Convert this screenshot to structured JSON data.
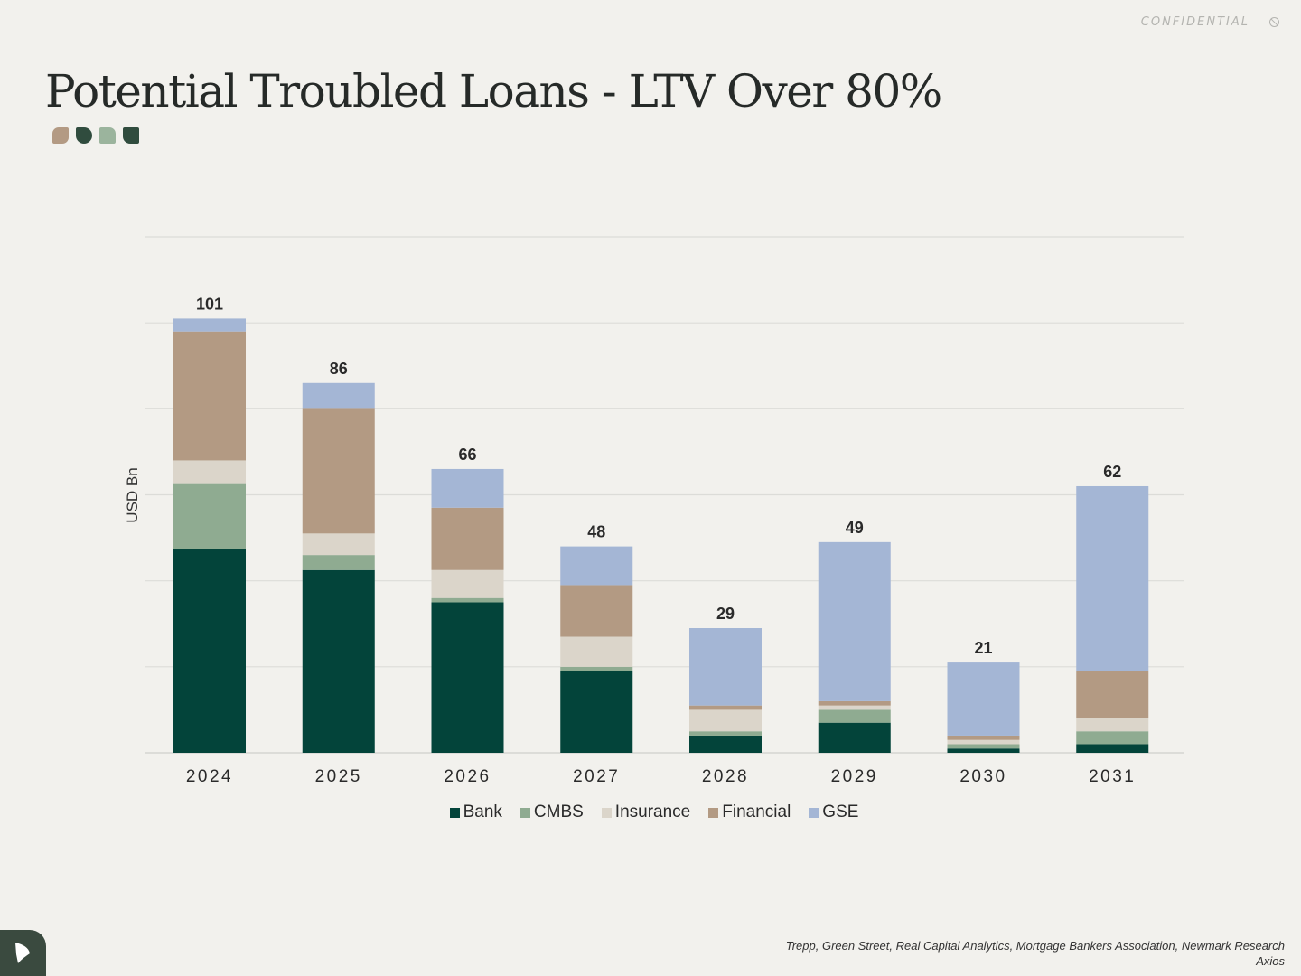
{
  "header": {
    "confidential_label": "CONFIDENTIAL",
    "confidential_icon": "no-entry-icon",
    "title": "Potential Troubled Loans - LTV Over 80%",
    "swatch_colors": [
      "#b39a83",
      "#304c3e",
      "#9bb49d",
      "#304c3e"
    ]
  },
  "chart_data": {
    "type": "bar",
    "stacked": true,
    "title": "",
    "xlabel": "",
    "ylabel": "USD Bn",
    "ylim": [
      0,
      120
    ],
    "grid": true,
    "legend_position": "bottom",
    "categories": [
      "2024",
      "2025",
      "2026",
      "2027",
      "2028",
      "2029",
      "2030",
      "2031"
    ],
    "totals": [
      101,
      86,
      66,
      48,
      29,
      49,
      21,
      62
    ],
    "series": [
      {
        "name": "Bank",
        "color": "#03443a",
        "values": [
          47.5,
          42.5,
          35,
          19,
          4,
          7,
          1,
          2
        ]
      },
      {
        "name": "CMBS",
        "color": "#8fab91",
        "values": [
          15,
          3.5,
          1,
          1,
          1,
          3,
          1,
          3
        ]
      },
      {
        "name": "Insurance",
        "color": "#dbd5ca",
        "values": [
          5.5,
          5,
          6.5,
          7,
          5,
          1,
          1,
          3
        ]
      },
      {
        "name": "Financial",
        "color": "#b39a83",
        "values": [
          30,
          29,
          14.5,
          12,
          1,
          1,
          1,
          11
        ]
      },
      {
        "name": "GSE",
        "color": "#a4b6d5",
        "values": [
          3,
          6,
          9,
          9,
          18,
          37,
          17,
          43
        ]
      }
    ]
  },
  "footer": {
    "source_line1": "Trepp, Green Street, Real Capital Analytics, Mortgage Bankers Association, Newmark Research",
    "source_line2": "Axios",
    "logo_icon": "leaf-logo-icon"
  }
}
